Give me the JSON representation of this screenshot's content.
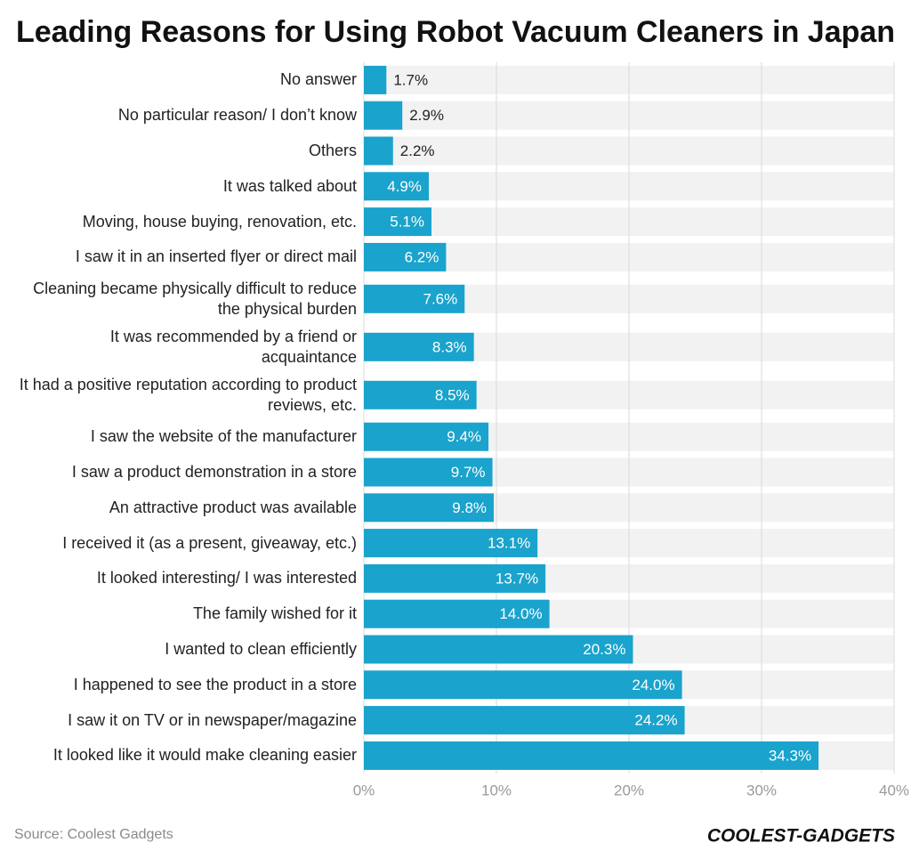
{
  "chart_data": {
    "type": "bar",
    "orientation": "horizontal",
    "title": "Leading Reasons for Using Robot Vacuum Cleaners in Japan",
    "categories": [
      "No answer",
      "No particular reason/ I don’t know",
      "Others",
      "It was talked about",
      "Moving, house buying, renovation, etc.",
      "I saw it in an inserted flyer or direct mail",
      "Cleaning became physically difficult to reduce the physical burden",
      "It was recommended by a friend or acquaintance",
      "It had a positive reputation according to product reviews, etc.",
      "I saw the website of the manufacturer",
      "I saw a product demonstration in a store",
      "An attractive product was available",
      "I received it (as a present, giveaway, etc.)",
      "It looked interesting/ I was interested",
      "The family wished for it",
      "I wanted to clean efficiently",
      "I happened to see the product in a store",
      "I saw it on TV or in newspaper/magazine",
      "It looked like it would make cleaning easier"
    ],
    "values": [
      1.7,
      2.9,
      2.2,
      4.9,
      5.1,
      6.2,
      7.6,
      8.3,
      8.5,
      9.4,
      9.7,
      9.8,
      13.1,
      13.7,
      14.0,
      20.3,
      24.0,
      24.2,
      34.3
    ],
    "value_labels": [
      "1.7%",
      "2.9%",
      "2.2%",
      "4.9%",
      "5.1%",
      "6.2%",
      "7.6%",
      "8.3%",
      "8.5%",
      "9.4%",
      "9.7%",
      "9.8%",
      "13.1%",
      "13.7%",
      "14.0%",
      "20.3%",
      "24.0%",
      "24.2%",
      "34.3%"
    ],
    "color": "#1aa3cc",
    "xlim": [
      0,
      40
    ],
    "xticks": [
      {
        "value": 0,
        "label": "0%"
      },
      {
        "value": 10,
        "label": "10%"
      },
      {
        "value": 20,
        "label": "20%"
      },
      {
        "value": 30,
        "label": "30%"
      },
      {
        "value": 40,
        "label": "40%"
      }
    ],
    "grid": true,
    "source": "Source: Coolest Gadgets",
    "brand": "COOLEST-GADGETS"
  }
}
